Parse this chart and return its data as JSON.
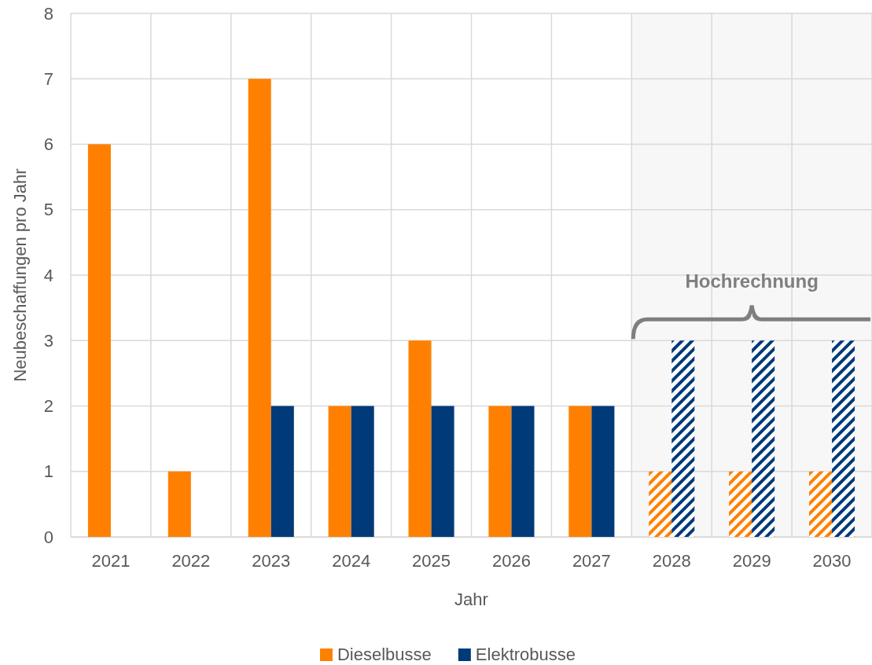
{
  "chart_data": {
    "type": "bar",
    "xlabel": "Jahr",
    "ylabel": "Neubeschaffungen pro Jahr",
    "categories": [
      "2021",
      "2022",
      "2023",
      "2024",
      "2025",
      "2026",
      "2027",
      "2028",
      "2029",
      "2030"
    ],
    "series": [
      {
        "name": "Dieselbusse",
        "color": "#ff8000",
        "values": [
          6,
          1,
          7,
          2,
          3,
          2,
          2,
          1,
          1,
          1
        ]
      },
      {
        "name": "Elektrobusse",
        "color": "#003a78",
        "values": [
          0,
          0,
          2,
          2,
          2,
          2,
          2,
          3,
          3,
          3
        ]
      }
    ],
    "ylim": [
      0,
      8
    ],
    "yticks": [
      0,
      1,
      2,
      3,
      4,
      5,
      6,
      7,
      8
    ],
    "grid": true,
    "legend": "bottom",
    "bands": [
      {
        "axis": "x",
        "from": "2028",
        "to": "2030",
        "label": "Hochrechnung",
        "color": "#7f7f7f"
      }
    ]
  }
}
